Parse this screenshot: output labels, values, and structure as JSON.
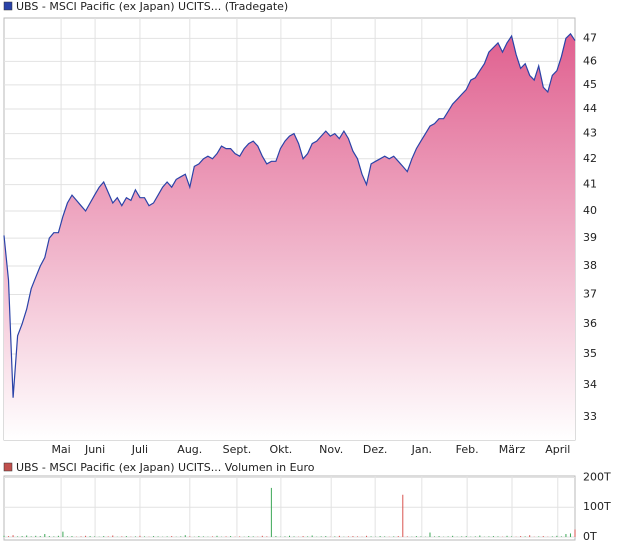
{
  "chart_data": [
    {
      "type": "area",
      "title": "UBS - MSCI Pacific (ex Japan) UCITS... (Tradegate)",
      "legend_color": "#2a43a8",
      "color": "#2a43a8",
      "fill_top": "#e0608f",
      "fill_bottom": "#ffffff",
      "log_scale": true,
      "grid": true,
      "values": [
        39.1,
        37.5,
        33.6,
        35.6,
        36.0,
        36.5,
        37.2,
        37.6,
        38.0,
        38.3,
        39.0,
        39.2,
        39.2,
        39.8,
        40.3,
        40.6,
        40.4,
        40.2,
        40.0,
        40.3,
        40.6,
        40.9,
        41.1,
        40.7,
        40.3,
        40.5,
        40.2,
        40.5,
        40.4,
        40.8,
        40.5,
        40.5,
        40.2,
        40.3,
        40.6,
        40.9,
        41.1,
        40.9,
        41.2,
        41.3,
        41.4,
        40.9,
        41.7,
        41.8,
        42.0,
        42.1,
        42.0,
        42.2,
        42.5,
        42.4,
        42.4,
        42.2,
        42.1,
        42.4,
        42.6,
        42.7,
        42.5,
        42.1,
        41.8,
        41.9,
        41.9,
        42.4,
        42.7,
        42.9,
        43.0,
        42.6,
        42.0,
        42.2,
        42.6,
        42.7,
        42.9,
        43.1,
        42.9,
        43.0,
        42.8,
        43.1,
        42.8,
        42.3,
        42.0,
        41.4,
        41.0,
        41.8,
        41.9,
        42.0,
        42.1,
        42.0,
        42.1,
        41.9,
        41.7,
        41.5,
        42.0,
        42.4,
        42.7,
        43.0,
        43.3,
        43.4,
        43.6,
        43.6,
        43.9,
        44.2,
        44.4,
        44.6,
        44.8,
        45.2,
        45.3,
        45.6,
        45.9,
        46.4,
        46.6,
        46.8,
        46.4,
        46.8,
        47.1,
        46.3,
        45.7,
        45.9,
        45.4,
        45.2,
        45.8,
        44.9,
        44.7,
        45.4,
        45.6,
        46.2,
        47.0,
        47.2,
        46.9
      ],
      "xlim": [
        0,
        126
      ],
      "xticks": [
        {
          "value": 12.6,
          "label": "Mai"
        },
        {
          "value": 20.1,
          "label": "Juni"
        },
        {
          "value": 30.0,
          "label": "Juli"
        },
        {
          "value": 41.0,
          "label": "Aug."
        },
        {
          "value": 51.4,
          "label": "Sept."
        },
        {
          "value": 61.1,
          "label": "Okt."
        },
        {
          "value": 72.2,
          "label": "Nov."
        },
        {
          "value": 81.9,
          "label": "Dez."
        },
        {
          "value": 92.2,
          "label": "Jan."
        },
        {
          "value": 102.2,
          "label": "Feb."
        },
        {
          "value": 112.1,
          "label": "März"
        },
        {
          "value": 122.2,
          "label": "April"
        }
      ],
      "ylim": [
        32.3,
        47.9
      ],
      "yticks": [
        33,
        34,
        35,
        36,
        37,
        38,
        39,
        40,
        41,
        42,
        43,
        44,
        45,
        46,
        47
      ]
    },
    {
      "type": "bar",
      "title": "UBS - MSCI Pacific (ex Japan) UCITS... Volumen in Euro",
      "legend_color": "#c0504d",
      "up_color": "#3aa655",
      "down_color": "#d9534f",
      "grid": true,
      "values": [
        4,
        3,
        6,
        2,
        3,
        5,
        2,
        4,
        3,
        10,
        3,
        2,
        4,
        18,
        2,
        3,
        1,
        2,
        4,
        3,
        2,
        1,
        3,
        2,
        5,
        1,
        2,
        3,
        1,
        2,
        4,
        2,
        1,
        3,
        2,
        1,
        2,
        3,
        1,
        2,
        6,
        2,
        1,
        3,
        2,
        1,
        2,
        4,
        1,
        2,
        3,
        1,
        2,
        1,
        3,
        2,
        1,
        4,
        2,
        165,
        3,
        1,
        2,
        4,
        2,
        1,
        3,
        2,
        5,
        1,
        2,
        3,
        1,
        2,
        4,
        1,
        2,
        3,
        2,
        1,
        4,
        2,
        1,
        3,
        2,
        1,
        2,
        3,
        142,
        2,
        1,
        3,
        2,
        1,
        15,
        2,
        3,
        1,
        2,
        4,
        1,
        2,
        3,
        1,
        2,
        5,
        1,
        2,
        3,
        2,
        1,
        4,
        2,
        1,
        3,
        2,
        6,
        1,
        2,
        3,
        1,
        2,
        4,
        2,
        10,
        12,
        25
      ],
      "xlim": [
        0,
        126
      ],
      "ylim": [
        0,
        205
      ],
      "yticks": [
        {
          "value": 0,
          "label": "0T"
        },
        {
          "value": 100,
          "label": "100T"
        },
        {
          "value": 200,
          "label": "200T"
        }
      ]
    }
  ]
}
